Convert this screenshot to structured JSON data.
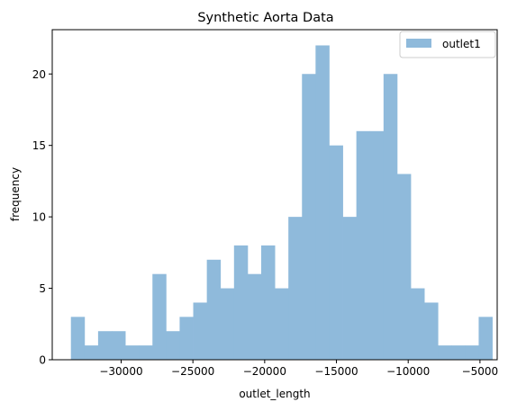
{
  "chart_data": {
    "type": "bar",
    "title": "Synthetic Aorta Data",
    "xlabel": "outlet_length",
    "ylabel": "frequency",
    "xlim": [
      -34800,
      -3800
    ],
    "ylim": [
      0,
      23.1
    ],
    "xticks": [
      -30000,
      -25000,
      -20000,
      -15000,
      -10000,
      -5000
    ],
    "xtick_labels": [
      "−30000",
      "−25000",
      "−20000",
      "−15000",
      "−10000",
      "−5000"
    ],
    "yticks": [
      0,
      5,
      10,
      15,
      20
    ],
    "ytick_labels": [
      "0",
      "5",
      "10",
      "15",
      "20"
    ],
    "bin_start": -33500,
    "bin_width": 947,
    "series": [
      {
        "name": "outlet1",
        "color": "#8fbadb",
        "values": [
          3,
          1,
          2,
          2,
          1,
          1,
          6,
          2,
          3,
          4,
          7,
          5,
          8,
          6,
          8,
          5,
          10,
          20,
          22,
          15,
          10,
          16,
          16,
          20,
          13,
          5,
          4,
          1,
          1,
          1,
          3
        ]
      }
    ],
    "legend": {
      "position": "top-right"
    },
    "grid": false
  }
}
